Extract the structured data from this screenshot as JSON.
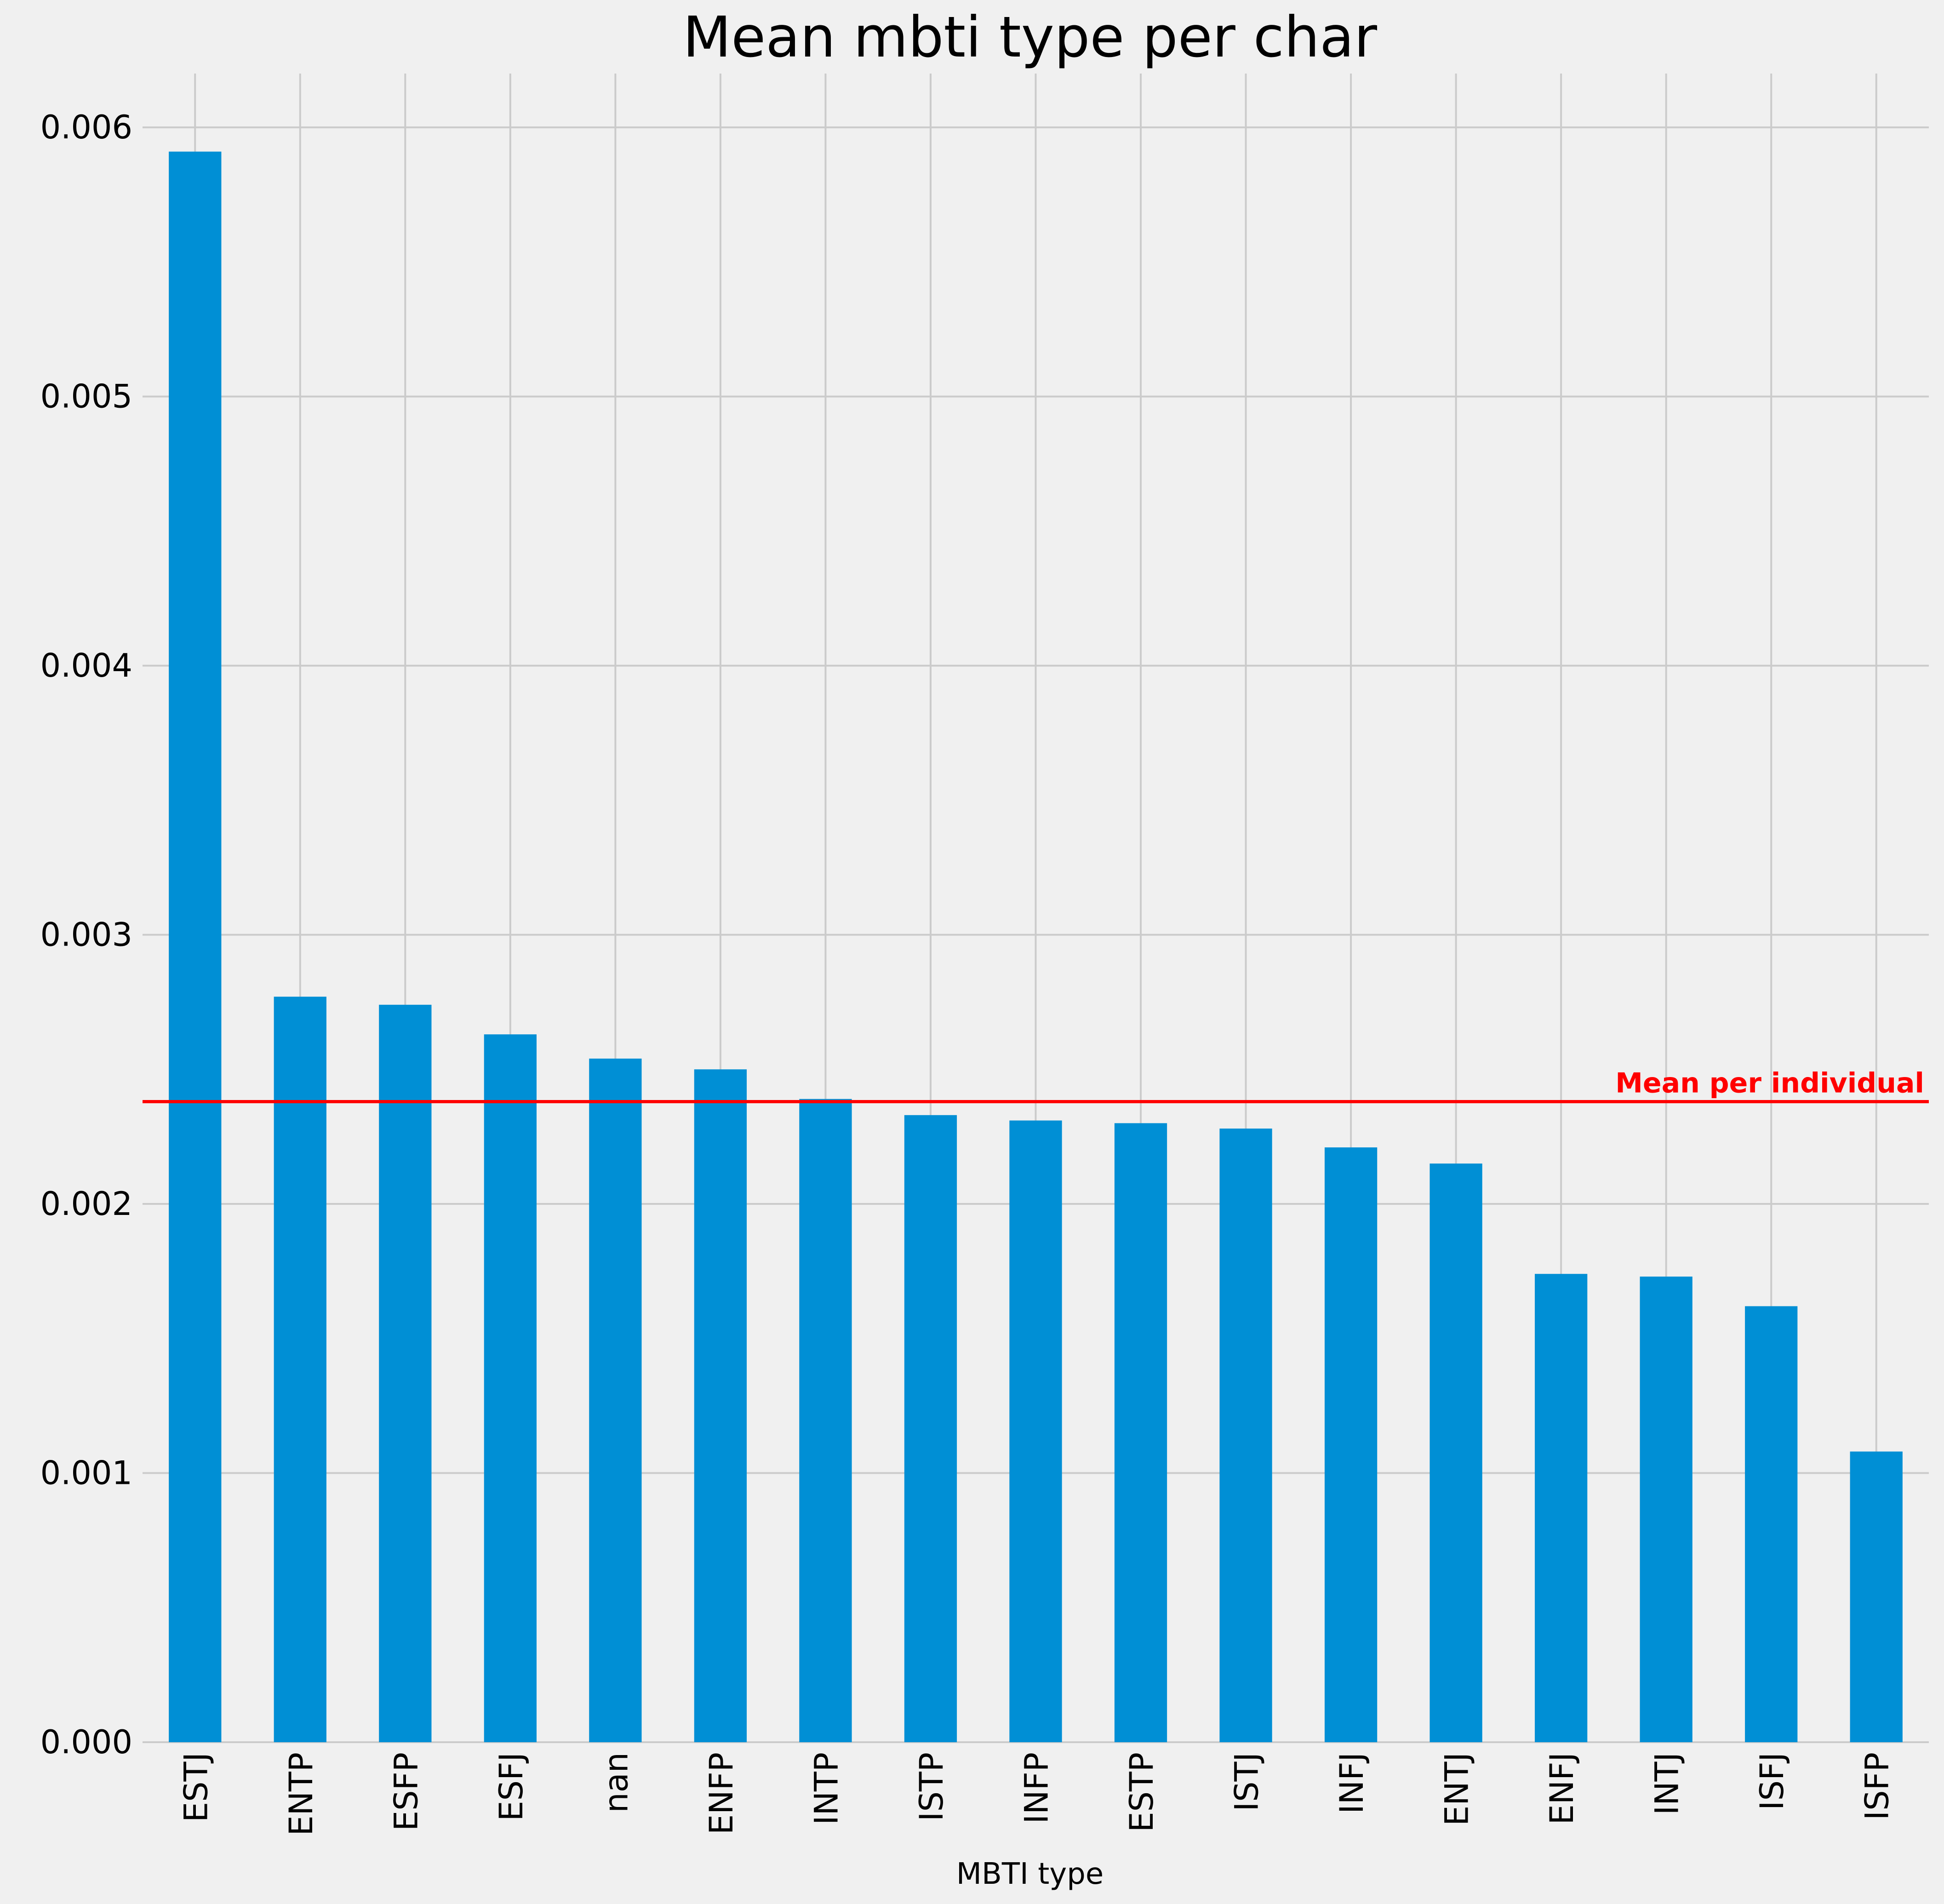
{
  "chart_data": {
    "type": "bar",
    "title": "Mean mbti type per char",
    "xlabel": "MBTI type",
    "ylabel": "",
    "categories": [
      "ESTJ",
      "ENTP",
      "ESFP",
      "ESFJ",
      "nan",
      "ENFP",
      "INTP",
      "ISTP",
      "INFP",
      "ESTP",
      "ISTJ",
      "INFJ",
      "ENTJ",
      "ENFJ",
      "INTJ",
      "ISFJ",
      "ISFP"
    ],
    "values": [
      0.00591,
      0.00277,
      0.00274,
      0.00263,
      0.00254,
      0.0025,
      0.00239,
      0.00233,
      0.00231,
      0.0023,
      0.00228,
      0.00221,
      0.00215,
      0.00174,
      0.00173,
      0.00162,
      0.00108
    ],
    "ylim": [
      0,
      0.0062
    ],
    "yticks": [
      0,
      0.001,
      0.002,
      0.003,
      0.004,
      0.005,
      0.006
    ],
    "ytick_labels": [
      "0.000",
      "0.001",
      "0.002",
      "0.003",
      "0.004",
      "0.005",
      "0.006"
    ],
    "grid": true,
    "bar_color": "#008fd5",
    "reference_line": {
      "value": 0.00238,
      "label": "Mean per individual",
      "color": "#ff0000"
    }
  }
}
